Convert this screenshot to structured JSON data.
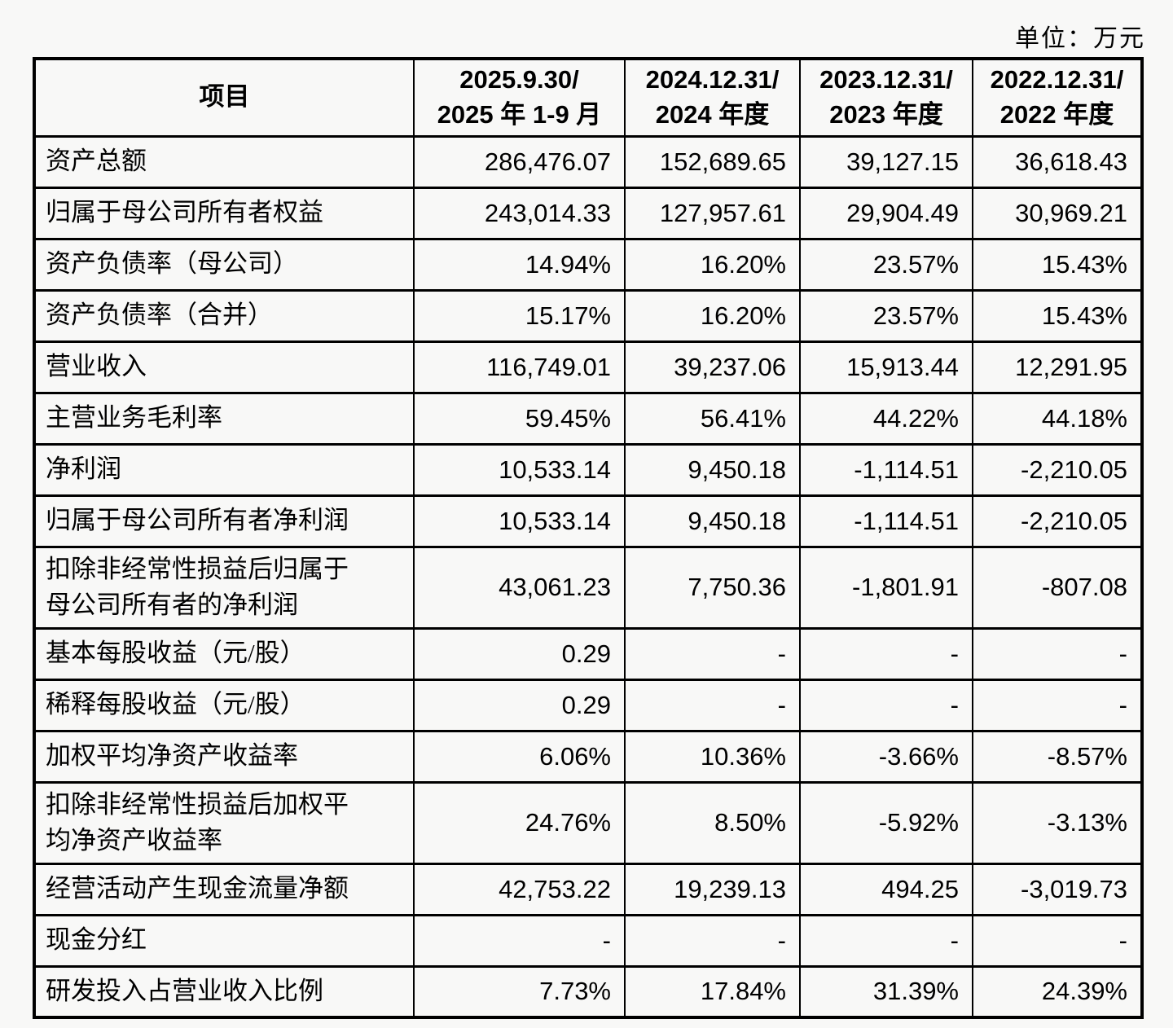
{
  "page": {
    "unit_label": "单位：万元"
  },
  "table": {
    "columns": [
      "项目",
      "2025.9.30/\n2025 年 1-9 月",
      "2024.12.31/\n2024 年度",
      "2023.12.31/\n2023 年度",
      "2022.12.31/\n2022 年度"
    ],
    "rows": [
      {
        "label": "资产总额",
        "values": [
          "286,476.07",
          "152,689.65",
          "39,127.15",
          "36,618.43"
        ]
      },
      {
        "label": "归属于母公司所有者权益",
        "values": [
          "243,014.33",
          "127,957.61",
          "29,904.49",
          "30,969.21"
        ]
      },
      {
        "label": "资产负债率（母公司）",
        "values": [
          "14.94%",
          "16.20%",
          "23.57%",
          "15.43%"
        ]
      },
      {
        "label": "资产负债率（合并）",
        "values": [
          "15.17%",
          "16.20%",
          "23.57%",
          "15.43%"
        ]
      },
      {
        "label": "营业收入",
        "values": [
          "116,749.01",
          "39,237.06",
          "15,913.44",
          "12,291.95"
        ]
      },
      {
        "label": "主营业务毛利率",
        "values": [
          "59.45%",
          "56.41%",
          "44.22%",
          "44.18%"
        ]
      },
      {
        "label": "净利润",
        "values": [
          "10,533.14",
          "9,450.18",
          "-1,114.51",
          "-2,210.05"
        ]
      },
      {
        "label": "归属于母公司所有者净利润",
        "values": [
          "10,533.14",
          "9,450.18",
          "-1,114.51",
          "-2,210.05"
        ]
      },
      {
        "label": "扣除非经常性损益后归属于\n母公司所有者的净利润",
        "values": [
          "43,061.23",
          "7,750.36",
          "-1,801.91",
          "-807.08"
        ]
      },
      {
        "label": "基本每股收益（元/股）",
        "values": [
          "0.29",
          "-",
          "-",
          "-"
        ]
      },
      {
        "label": "稀释每股收益（元/股）",
        "values": [
          "0.29",
          "-",
          "-",
          "-"
        ]
      },
      {
        "label": "加权平均净资产收益率",
        "values": [
          "6.06%",
          "10.36%",
          "-3.66%",
          "-8.57%"
        ]
      },
      {
        "label": "扣除非经常性损益后加权平\n均净资产收益率",
        "values": [
          "24.76%",
          "8.50%",
          "-5.92%",
          "-3.13%"
        ]
      },
      {
        "label": "经营活动产生现金流量净额",
        "values": [
          "42,753.22",
          "19,239.13",
          "494.25",
          "-3,019.73"
        ]
      },
      {
        "label": "现金分红",
        "values": [
          "-",
          "-",
          "-",
          "-"
        ]
      },
      {
        "label": "研发投入占营业收入比例",
        "values": [
          "7.73%",
          "17.84%",
          "31.39%",
          "24.39%"
        ]
      }
    ]
  }
}
